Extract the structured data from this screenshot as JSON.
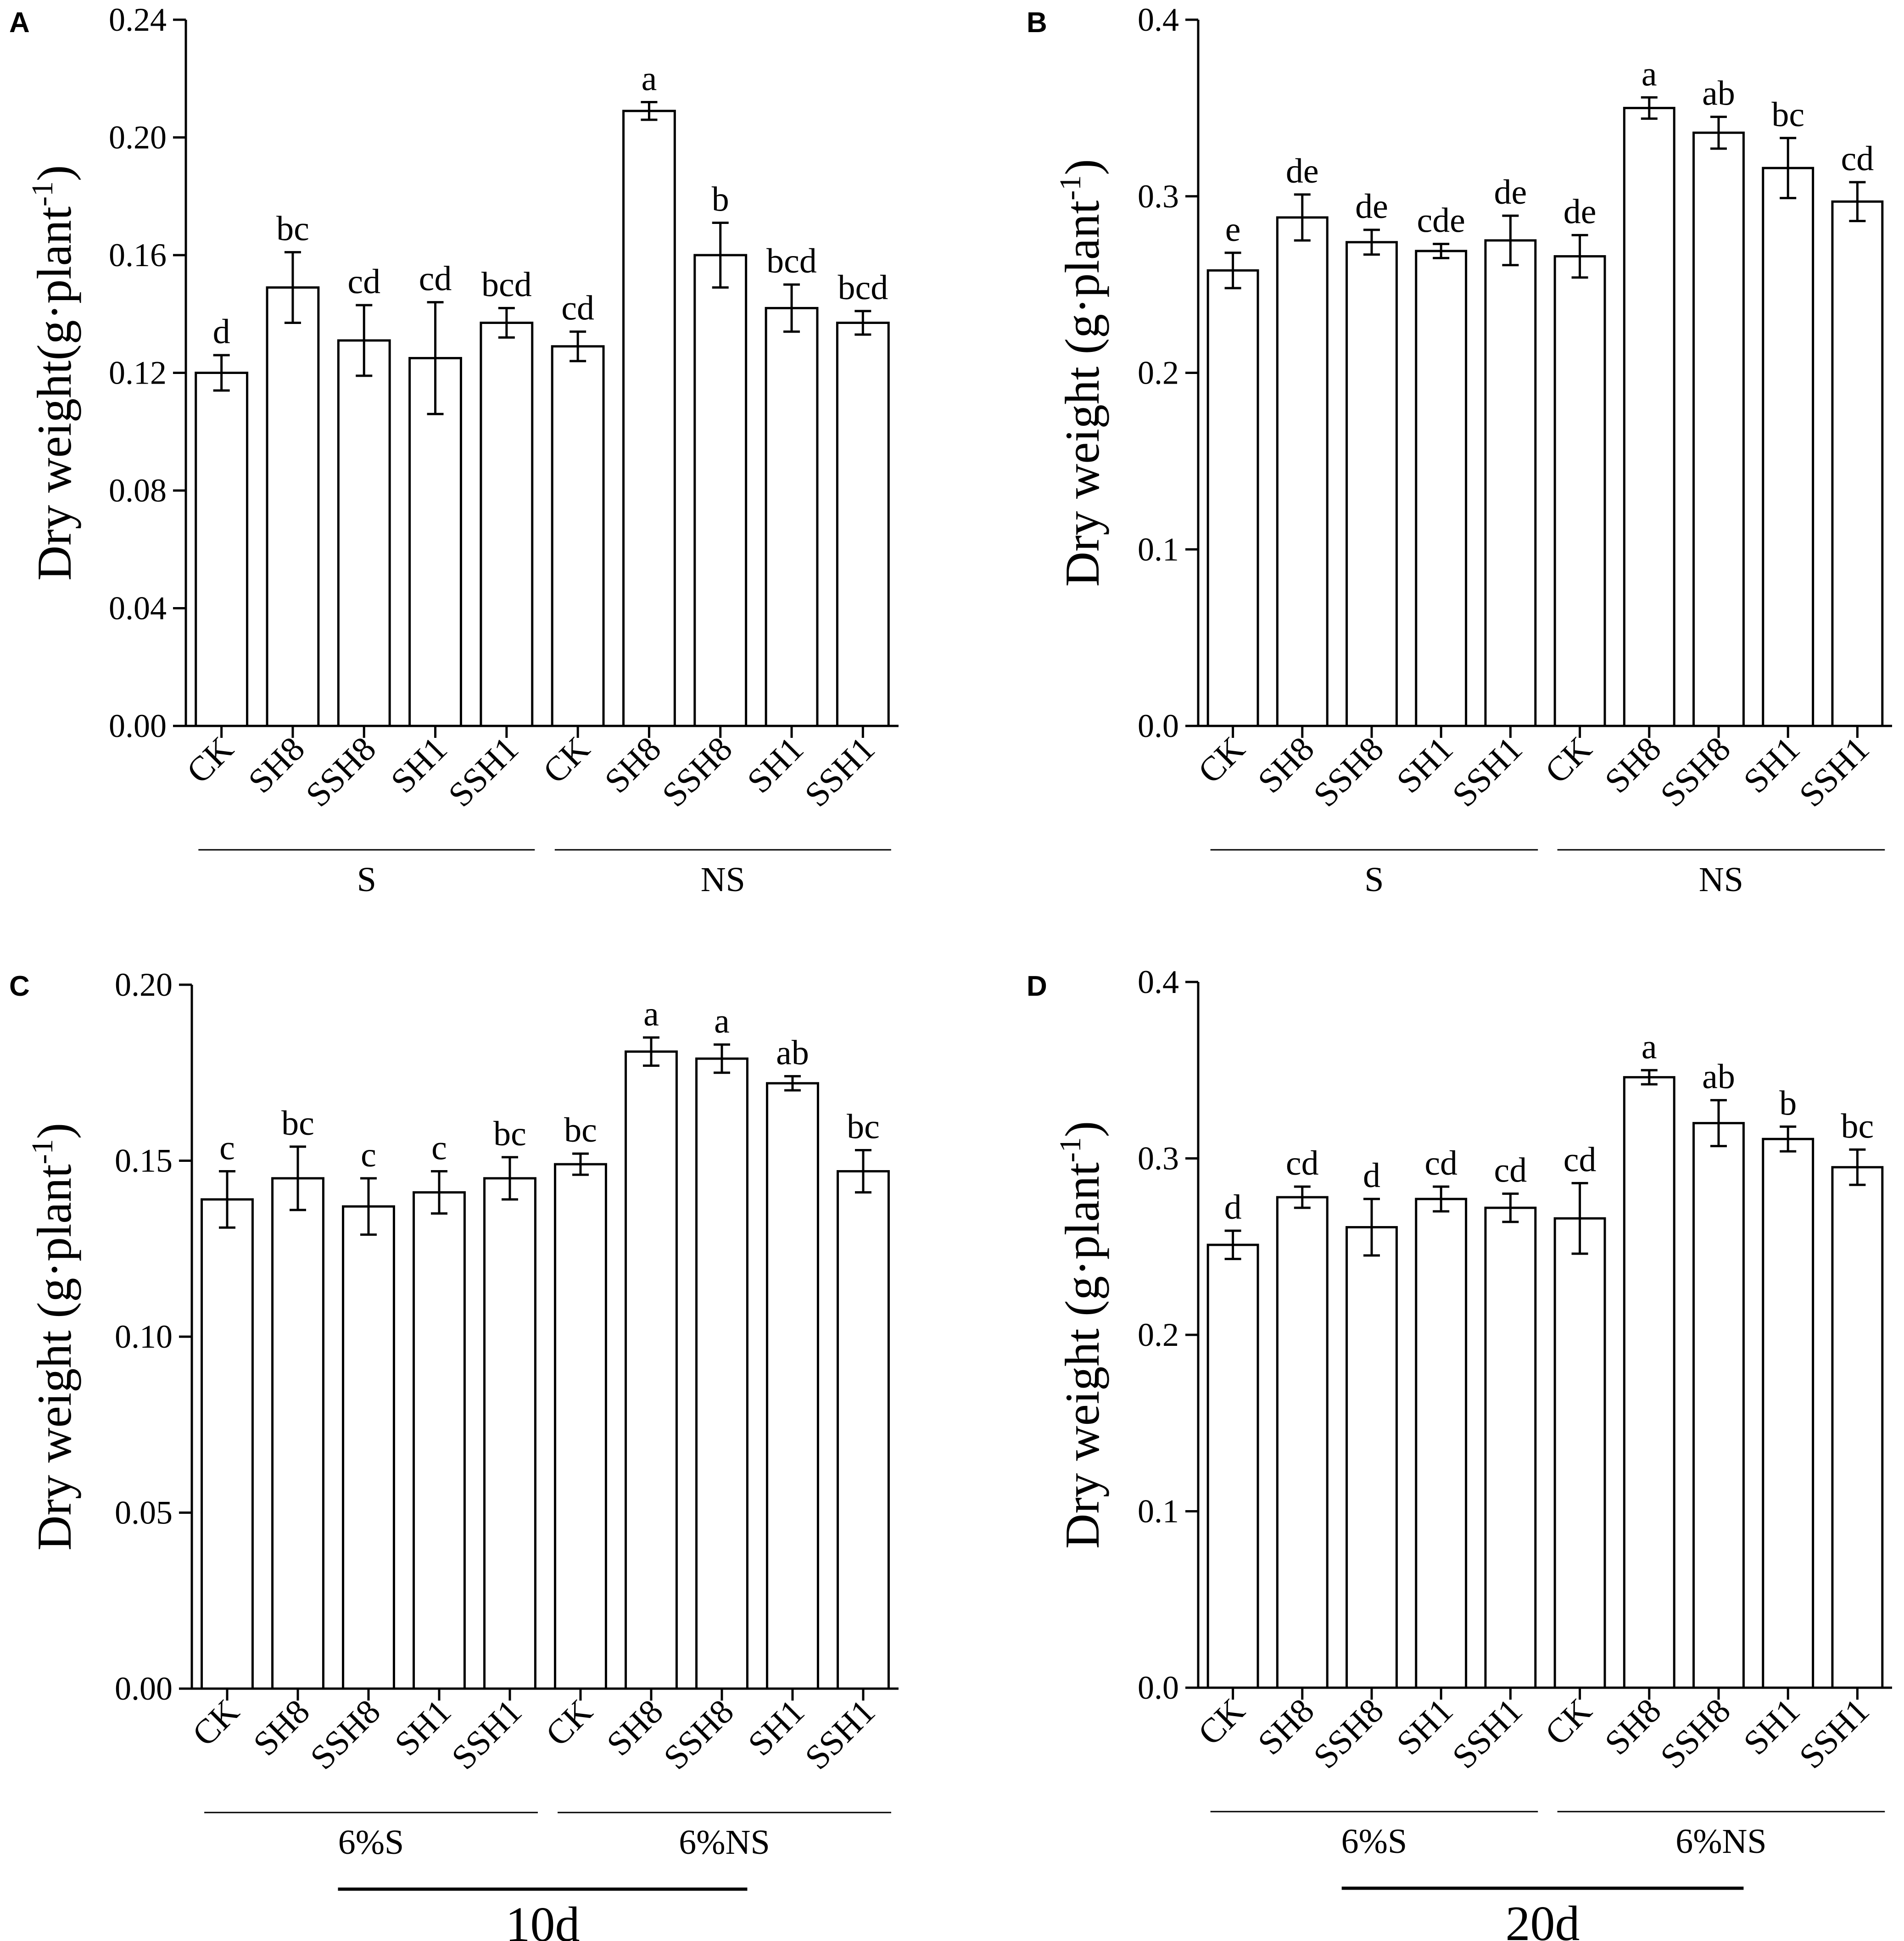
{
  "colors": {
    "axis": "#000000",
    "bar_fill": "#ffffff",
    "bar_stroke": "#000000"
  },
  "chart_data": [
    {
      "panel": "A",
      "type": "bar",
      "ylabel": "Dry weight(g·plant-1)",
      "ylim": [
        0,
        0.24
      ],
      "yticks": [
        "0.00",
        "0.04",
        "0.08",
        "0.12",
        "0.16",
        "0.20",
        "0.24"
      ],
      "categories": [
        "CK",
        "SH8",
        "SSH8",
        "SH1",
        "SSH1",
        "CK",
        "SH8",
        "SSH8",
        "SH1",
        "SSH1"
      ],
      "values": [
        0.12,
        0.149,
        0.131,
        0.125,
        0.137,
        0.129,
        0.209,
        0.16,
        0.142,
        0.137
      ],
      "errors": [
        0.006,
        0.012,
        0.012,
        0.019,
        0.005,
        0.005,
        0.003,
        0.011,
        0.008,
        0.004
      ],
      "letters": [
        "d",
        "bc",
        "cd",
        "cd",
        "bcd",
        "cd",
        "a",
        "b",
        "bcd",
        "bcd"
      ],
      "groups": [
        {
          "label": "S",
          "from": 0,
          "to": 4
        },
        {
          "label": "NS",
          "from": 5,
          "to": 9
        }
      ],
      "bottom_label": ""
    },
    {
      "panel": "B",
      "type": "bar",
      "ylabel": "Dry weight (g·plant-1)",
      "ylim": [
        0,
        0.4
      ],
      "yticks": [
        "0.0",
        "0.1",
        "0.2",
        "0.3",
        "0.4"
      ],
      "categories": [
        "CK",
        "SH8",
        "SSH8",
        "SH1",
        "SSH1",
        "CK",
        "SH8",
        "SSH8",
        "SH1",
        "SSH1"
      ],
      "values": [
        0.258,
        0.288,
        0.274,
        0.269,
        0.275,
        0.266,
        0.35,
        0.336,
        0.316,
        0.297
      ],
      "errors": [
        0.01,
        0.013,
        0.007,
        0.004,
        0.014,
        0.012,
        0.006,
        0.009,
        0.017,
        0.011
      ],
      "letters": [
        "e",
        "de",
        "de",
        "cde",
        "de",
        "de",
        "a",
        "ab",
        "bc",
        "cd"
      ],
      "groups": [
        {
          "label": "S",
          "from": 0,
          "to": 4
        },
        {
          "label": "NS",
          "from": 5,
          "to": 9
        }
      ],
      "bottom_label": ""
    },
    {
      "panel": "C",
      "type": "bar",
      "ylabel": "Dry weight (g·plant-1)",
      "ylim": [
        0,
        0.2
      ],
      "yticks": [
        "0.00",
        "0.05",
        "0.10",
        "0.15",
        "0.20"
      ],
      "categories": [
        "CK",
        "SH8",
        "SSH8",
        "SH1",
        "SSH1",
        "CK",
        "SH8",
        "SSH8",
        "SH1",
        "SSH1"
      ],
      "values": [
        0.139,
        0.145,
        0.137,
        0.141,
        0.145,
        0.149,
        0.181,
        0.179,
        0.172,
        0.147
      ],
      "errors": [
        0.008,
        0.009,
        0.008,
        0.006,
        0.006,
        0.003,
        0.004,
        0.004,
        0.002,
        0.006
      ],
      "letters": [
        "c",
        "bc",
        "c",
        "c",
        "bc",
        "bc",
        "a",
        "a",
        "ab",
        "bc"
      ],
      "groups": [
        {
          "label": "6%S",
          "from": 0,
          "to": 4
        },
        {
          "label": "6%NS",
          "from": 5,
          "to": 9
        }
      ],
      "bottom_label": "10d"
    },
    {
      "panel": "D",
      "type": "bar",
      "ylabel": "Dry weight (g·plant-1)",
      "ylim": [
        0,
        0.4
      ],
      "yticks": [
        "0.0",
        "0.1",
        "0.2",
        "0.3",
        "0.4"
      ],
      "categories": [
        "CK",
        "SH8",
        "SSH8",
        "SH1",
        "SSH1",
        "CK",
        "SH8",
        "SSH8",
        "SH1",
        "SSH1"
      ],
      "values": [
        0.251,
        0.278,
        0.261,
        0.277,
        0.272,
        0.266,
        0.346,
        0.32,
        0.311,
        0.295
      ],
      "errors": [
        0.008,
        0.006,
        0.016,
        0.007,
        0.008,
        0.02,
        0.004,
        0.013,
        0.007,
        0.01
      ],
      "letters": [
        "d",
        "cd",
        "d",
        "cd",
        "cd",
        "cd",
        "a",
        "ab",
        "b",
        "bc"
      ],
      "groups": [
        {
          "label": "6%S",
          "from": 0,
          "to": 4
        },
        {
          "label": "6%NS",
          "from": 5,
          "to": 9
        }
      ],
      "bottom_label": "20d"
    }
  ]
}
